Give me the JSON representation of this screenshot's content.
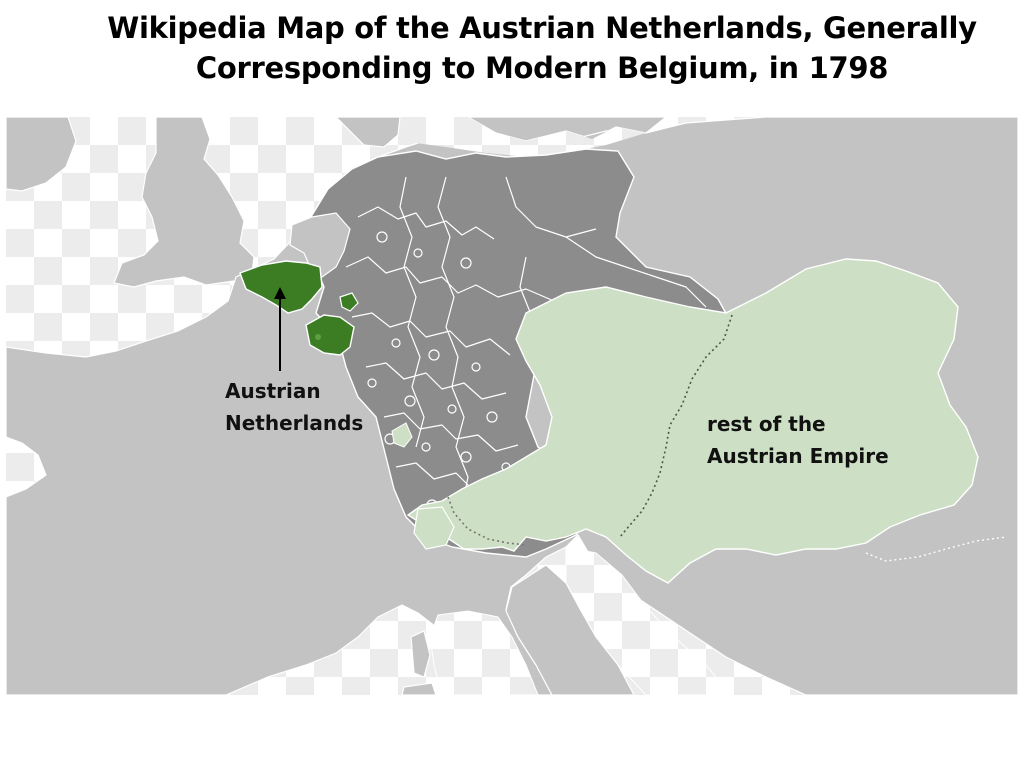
{
  "title": {
    "line1": "Wikipedia Map of the Austrian Netherlands, Generally",
    "line2": "Corresponding to Modern Belgium, in 1798"
  },
  "labels": {
    "austrian_netherlands": {
      "line1": "Austrian",
      "line2": "Netherlands"
    },
    "austrian_empire": {
      "line1": "rest of the",
      "line2": "Austrian Empire"
    }
  },
  "colors": {
    "land": "#c3c3c3",
    "holy_roman_empire": "#8c8c8c",
    "austrian_netherlands": "#3c7d23",
    "austrian_empire": "#cddfc4",
    "water_check_light": "#ffffff",
    "water_check_dark": "#ececec",
    "border": "#ffffff"
  }
}
